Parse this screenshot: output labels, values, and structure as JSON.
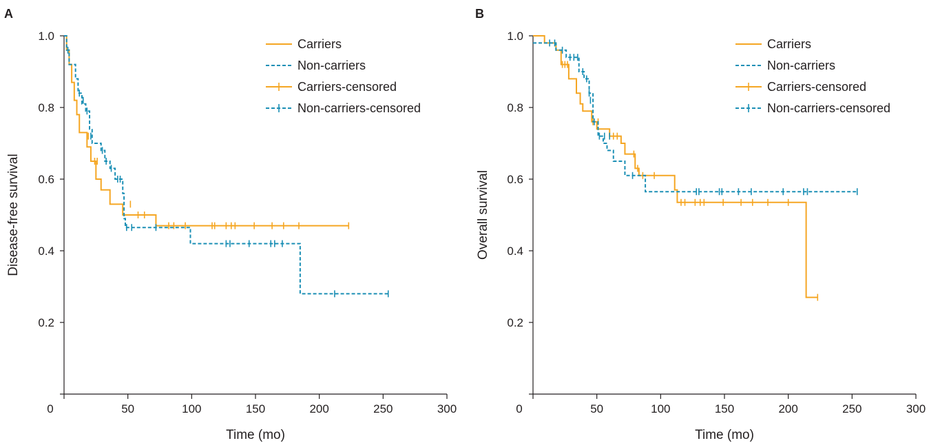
{
  "colors": {
    "carriers": "#f5a623",
    "non_carriers": "#1b8fb5",
    "axis": "#231f20"
  },
  "chart_data": [
    {
      "panel": "A",
      "type": "line",
      "subtype": "kaplan-meier",
      "xlabel": "Time (mo)",
      "ylabel": "Disease-free survival",
      "xlim": [
        0,
        300
      ],
      "ylim": [
        0,
        1.0
      ],
      "xticks": [
        "0",
        "50",
        "100",
        "150",
        "200",
        "250",
        "300"
      ],
      "yticks": [
        "0.2",
        "0.4",
        "0.6",
        "0.8",
        "1.0"
      ],
      "grid": false,
      "legend_position": "top-right",
      "legend": [
        "Carriers",
        "Non-carriers",
        "Carriers-censored",
        "Non-carriers-censored"
      ],
      "series": [
        {
          "name": "Carriers",
          "style": "solid",
          "steps": [
            [
              0,
              1.0
            ],
            [
              2,
              0.96
            ],
            [
              4,
              0.92
            ],
            [
              6,
              0.87
            ],
            [
              8,
              0.82
            ],
            [
              10,
              0.78
            ],
            [
              12,
              0.73
            ],
            [
              18,
              0.69
            ],
            [
              21,
              0.65
            ],
            [
              25,
              0.6
            ],
            [
              29,
              0.57
            ],
            [
              36,
              0.53
            ],
            [
              46,
              0.5
            ],
            [
              72,
              0.47
            ],
            [
              223,
              0.47
            ]
          ],
          "censored": [
            [
              19,
              0.72
            ],
            [
              24,
              0.65
            ],
            [
              26,
              0.65
            ],
            [
              52,
              0.53
            ],
            [
              58,
              0.5
            ],
            [
              63,
              0.5
            ],
            [
              82,
              0.47
            ],
            [
              86,
              0.47
            ],
            [
              95,
              0.47
            ],
            [
              116,
              0.47
            ],
            [
              118,
              0.47
            ],
            [
              127,
              0.47
            ],
            [
              131,
              0.47
            ],
            [
              134,
              0.47
            ],
            [
              149,
              0.47
            ],
            [
              163,
              0.47
            ],
            [
              172,
              0.47
            ],
            [
              184,
              0.47
            ],
            [
              223,
              0.47
            ]
          ]
        },
        {
          "name": "Non-carriers",
          "style": "dashed",
          "steps": [
            [
              0,
              1.0
            ],
            [
              2,
              0.96
            ],
            [
              4,
              0.92
            ],
            [
              9,
              0.88
            ],
            [
              11,
              0.84
            ],
            [
              14,
              0.81
            ],
            [
              17,
              0.79
            ],
            [
              20,
              0.74
            ],
            [
              22,
              0.7
            ],
            [
              29,
              0.68
            ],
            [
              32,
              0.65
            ],
            [
              36,
              0.63
            ],
            [
              40,
              0.6
            ],
            [
              46,
              0.56
            ],
            [
              47,
              0.49
            ],
            [
              48,
              0.465
            ],
            [
              98,
              0.465
            ],
            [
              99,
              0.42
            ],
            [
              184,
              0.42
            ],
            [
              185,
              0.28
            ],
            [
              254,
              0.28
            ]
          ],
          "censored": [
            [
              3,
              0.96
            ],
            [
              12,
              0.84
            ],
            [
              15,
              0.82
            ],
            [
              18,
              0.79
            ],
            [
              21,
              0.72
            ],
            [
              30,
              0.68
            ],
            [
              33,
              0.65
            ],
            [
              37,
              0.63
            ],
            [
              42,
              0.6
            ],
            [
              44,
              0.6
            ],
            [
              49,
              0.465
            ],
            [
              53,
              0.465
            ],
            [
              72,
              0.465
            ],
            [
              127,
              0.42
            ],
            [
              130,
              0.42
            ],
            [
              145,
              0.42
            ],
            [
              162,
              0.42
            ],
            [
              165,
              0.42
            ],
            [
              171,
              0.42
            ],
            [
              212,
              0.28
            ],
            [
              254,
              0.28
            ]
          ]
        }
      ]
    },
    {
      "panel": "B",
      "type": "line",
      "subtype": "kaplan-meier",
      "xlabel": "Time (mo)",
      "ylabel": "Overall survival",
      "xlim": [
        0,
        300
      ],
      "ylim": [
        0,
        1.0
      ],
      "xticks": [
        "0",
        "50",
        "100",
        "150",
        "200",
        "250",
        "300"
      ],
      "yticks": [
        "0.2",
        "0.4",
        "0.6",
        "0.8",
        "1.0"
      ],
      "grid": false,
      "legend_position": "top-right",
      "legend": [
        "Carriers",
        "Non-carriers",
        "Carriers-censored",
        "Non-carriers-censored"
      ],
      "series": [
        {
          "name": "Carriers",
          "style": "solid",
          "steps": [
            [
              0,
              1.0
            ],
            [
              9,
              0.98
            ],
            [
              18,
              0.96
            ],
            [
              22,
              0.92
            ],
            [
              28,
              0.88
            ],
            [
              34,
              0.84
            ],
            [
              37,
              0.81
            ],
            [
              39,
              0.79
            ],
            [
              46,
              0.76
            ],
            [
              50,
              0.74
            ],
            [
              60,
              0.72
            ],
            [
              69,
              0.7
            ],
            [
              72,
              0.67
            ],
            [
              80,
              0.63
            ],
            [
              83,
              0.61
            ],
            [
              111,
              0.57
            ],
            [
              113,
              0.535
            ],
            [
              213,
              0.535
            ],
            [
              214,
              0.27
            ],
            [
              223,
              0.27
            ]
          ],
          "censored": [
            [
              23,
              0.92
            ],
            [
              25,
              0.92
            ],
            [
              27,
              0.92
            ],
            [
              47,
              0.76
            ],
            [
              51,
              0.76
            ],
            [
              60,
              0.72
            ],
            [
              63,
              0.72
            ],
            [
              66,
              0.72
            ],
            [
              79,
              0.67
            ],
            [
              82,
              0.63
            ],
            [
              86,
              0.61
            ],
            [
              95,
              0.61
            ],
            [
              116,
              0.535
            ],
            [
              119,
              0.535
            ],
            [
              127,
              0.535
            ],
            [
              131,
              0.535
            ],
            [
              134,
              0.535
            ],
            [
              149,
              0.535
            ],
            [
              163,
              0.535
            ],
            [
              172,
              0.535
            ],
            [
              184,
              0.535
            ],
            [
              200,
              0.535
            ],
            [
              223,
              0.27
            ]
          ]
        },
        {
          "name": "Non-carriers",
          "style": "dashed",
          "steps": [
            [
              0,
              0.98
            ],
            [
              12,
              0.98
            ],
            [
              18,
              0.96
            ],
            [
              26,
              0.94
            ],
            [
              36,
              0.9
            ],
            [
              40,
              0.88
            ],
            [
              44,
              0.84
            ],
            [
              47,
              0.76
            ],
            [
              51,
              0.72
            ],
            [
              55,
              0.7
            ],
            [
              58,
              0.68
            ],
            [
              63,
              0.65
            ],
            [
              72,
              0.61
            ],
            [
              88,
              0.565
            ],
            [
              254,
              0.565
            ]
          ],
          "censored": [
            [
              13,
              0.98
            ],
            [
              17,
              0.98
            ],
            [
              23,
              0.96
            ],
            [
              29,
              0.94
            ],
            [
              32,
              0.94
            ],
            [
              35,
              0.94
            ],
            [
              39,
              0.9
            ],
            [
              42,
              0.88
            ],
            [
              44,
              0.84
            ],
            [
              45,
              0.82
            ],
            [
              48,
              0.76
            ],
            [
              52,
              0.72
            ],
            [
              56,
              0.72
            ],
            [
              60,
              0.72
            ],
            [
              78,
              0.61
            ],
            [
              128,
              0.565
            ],
            [
              130,
              0.565
            ],
            [
              146,
              0.565
            ],
            [
              148,
              0.565
            ],
            [
              161,
              0.565
            ],
            [
              171,
              0.565
            ],
            [
              196,
              0.565
            ],
            [
              212,
              0.565
            ],
            [
              215,
              0.565
            ],
            [
              254,
              0.565
            ]
          ]
        }
      ]
    }
  ]
}
